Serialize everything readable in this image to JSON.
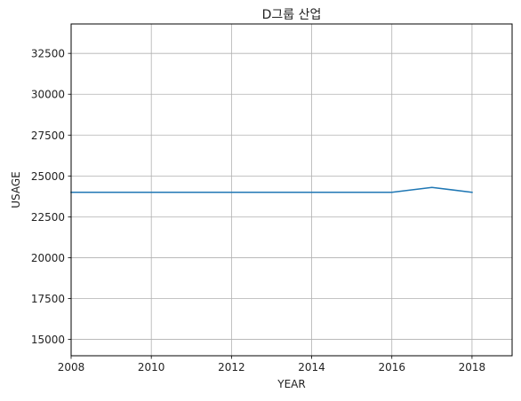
{
  "chart_data": {
    "type": "line",
    "title": "D그룹 산업",
    "xlabel": "YEAR",
    "ylabel": "USAGE",
    "xlim": [
      2008,
      2019
    ],
    "ylim": [
      14000,
      34300
    ],
    "grid": true,
    "x_ticks": [
      2008,
      2010,
      2012,
      2014,
      2016,
      2018
    ],
    "x_tick_labels": [
      "2008",
      "2010",
      "2012",
      "2014",
      "2016",
      "2018"
    ],
    "y_ticks": [
      15000,
      17500,
      20000,
      22500,
      25000,
      27500,
      30000,
      32500
    ],
    "y_tick_labels": [
      "15000",
      "17500",
      "20000",
      "22500",
      "25000",
      "27500",
      "30000",
      "32500"
    ],
    "series": [
      {
        "color": "#1f77b4",
        "x": [
          2008,
          2009,
          2010,
          2011,
          2012,
          2013,
          2014,
          2015,
          2016,
          2017,
          2018
        ],
        "y": [
          24000,
          24000,
          24000,
          24000,
          24000,
          24000,
          24000,
          24000,
          24000,
          24300,
          24000
        ]
      }
    ],
    "colors": {
      "grid": "#b0b0b0",
      "axis": "#000000"
    }
  }
}
